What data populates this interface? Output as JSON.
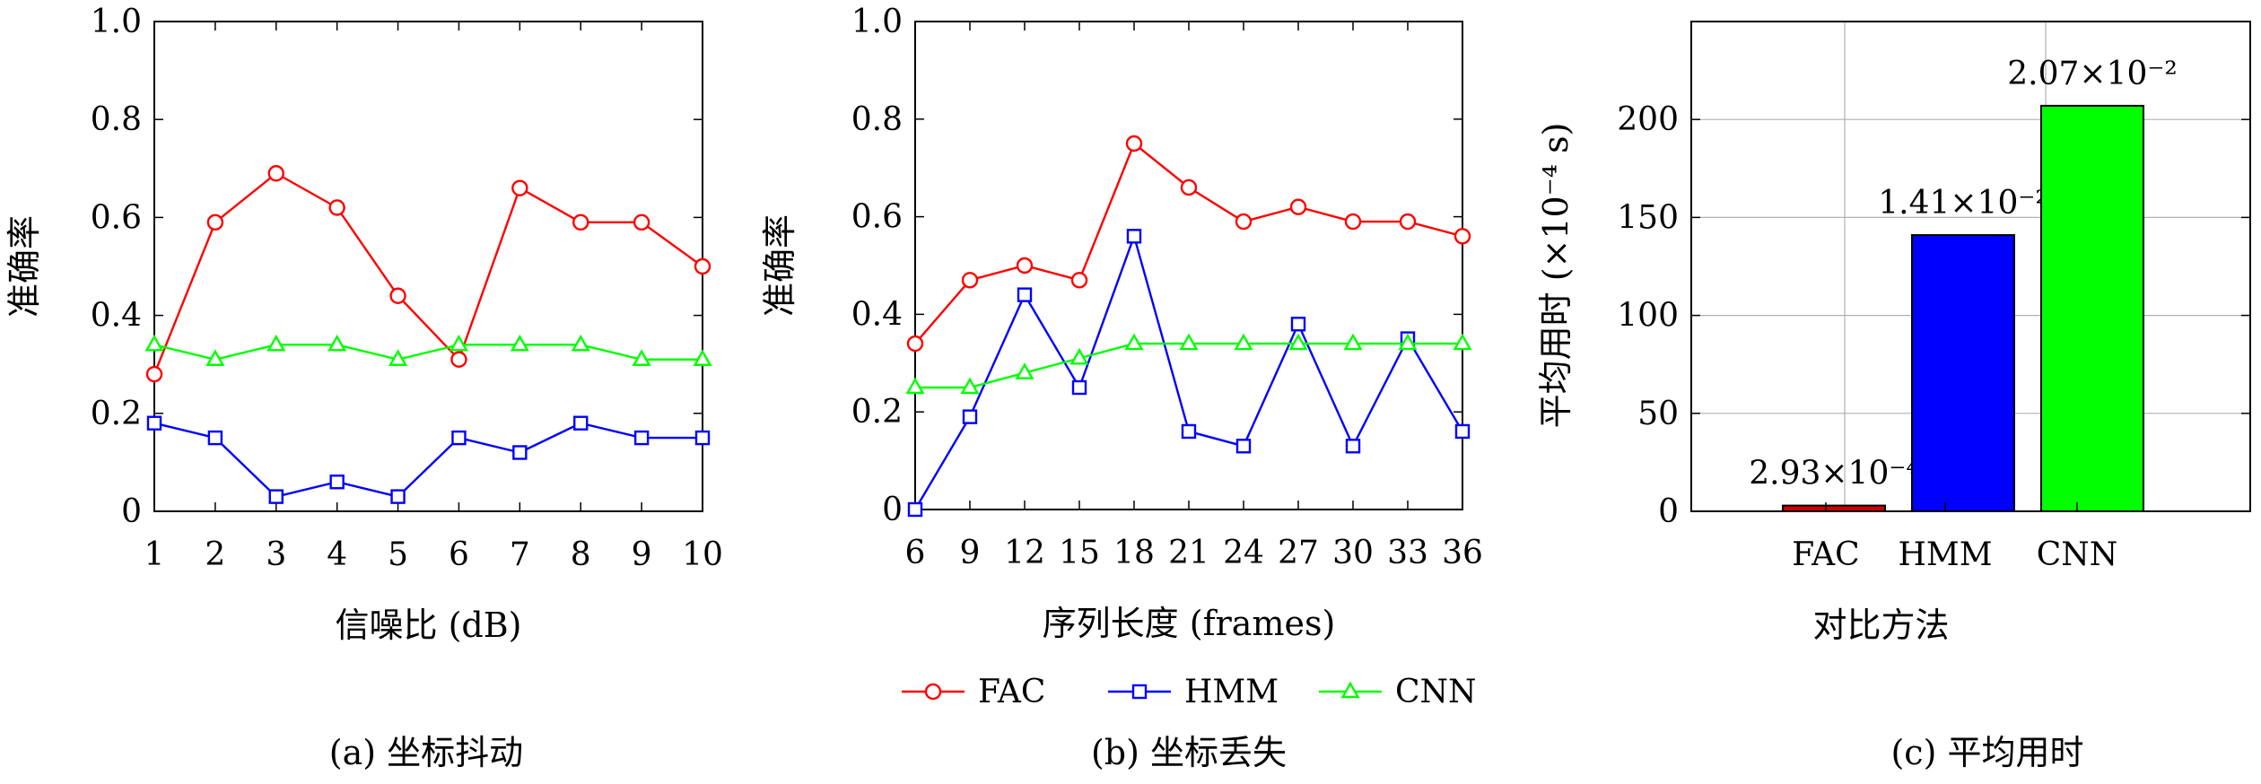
{
  "chart_data": [
    {
      "type": "line",
      "caption": "(a) 坐标抖动",
      "xlabel": "信噪比 (dB)",
      "ylabel": "准确率",
      "x": [
        1,
        2,
        3,
        4,
        5,
        6,
        7,
        8,
        9,
        10
      ],
      "xticks": [
        "1",
        "2",
        "3",
        "4",
        "5",
        "6",
        "7",
        "8",
        "9",
        "10"
      ],
      "xlim": [
        1,
        10
      ],
      "ylim": [
        0,
        1.0
      ],
      "yticks": [
        "0",
        "0.2",
        "0.4",
        "0.6",
        "0.8",
        "1.0"
      ],
      "grid": false,
      "series": [
        {
          "name": "FAC",
          "color": "#ff0000",
          "marker": "circle",
          "values": [
            0.28,
            0.59,
            0.69,
            0.62,
            0.44,
            0.31,
            0.66,
            0.59,
            0.59,
            0.5
          ]
        },
        {
          "name": "HMM",
          "color": "#0000ff",
          "marker": "square",
          "values": [
            0.18,
            0.15,
            0.03,
            0.06,
            0.03,
            0.15,
            0.12,
            0.18,
            0.15,
            0.15
          ]
        },
        {
          "name": "CNN",
          "color": "#00ff00",
          "marker": "triangle",
          "values": [
            0.34,
            0.31,
            0.34,
            0.34,
            0.31,
            0.34,
            0.34,
            0.34,
            0.31,
            0.31
          ]
        }
      ]
    },
    {
      "type": "line",
      "caption": "(b) 坐标丢失",
      "xlabel": "序列长度 (frames)",
      "ylabel": "准确率",
      "x": [
        6,
        9,
        12,
        15,
        18,
        21,
        24,
        27,
        30,
        33,
        36
      ],
      "xticks": [
        "6",
        "9",
        "12",
        "15",
        "18",
        "21",
        "24",
        "27",
        "30",
        "33",
        "36"
      ],
      "xlim": [
        6,
        36
      ],
      "ylim": [
        0,
        1.0
      ],
      "yticks": [
        "0",
        "0.2",
        "0.4",
        "0.6",
        "0.8",
        "1.0"
      ],
      "grid": false,
      "legend": "bottom",
      "series": [
        {
          "name": "FAC",
          "color": "#ff0000",
          "marker": "circle",
          "values": [
            0.34,
            0.47,
            0.5,
            0.47,
            0.75,
            0.66,
            0.59,
            0.62,
            0.59,
            0.59,
            0.56
          ]
        },
        {
          "name": "HMM",
          "color": "#0000ff",
          "marker": "square",
          "values": [
            0.0,
            0.19,
            0.44,
            0.25,
            0.56,
            0.16,
            0.13,
            0.38,
            0.13,
            0.35,
            0.16
          ]
        },
        {
          "name": "CNN",
          "color": "#00ff00",
          "marker": "triangle",
          "values": [
            0.25,
            0.25,
            0.28,
            0.31,
            0.34,
            0.34,
            0.34,
            0.34,
            0.34,
            0.34,
            0.34
          ]
        }
      ]
    },
    {
      "type": "bar",
      "caption": "(c) 平均用时",
      "xlabel": "对比方法",
      "ylabel": "平均用时 (×10⁻⁴ s)",
      "categories": [
        "FAC",
        "HMM",
        "CNN"
      ],
      "values": [
        2.93,
        141,
        207
      ],
      "colors": [
        "#cc0000",
        "#0000ff",
        "#00ff00"
      ],
      "data_labels": [
        "2.93×10⁻⁴",
        "1.41×10⁻²",
        "2.07×10⁻²"
      ],
      "ylim": [
        0,
        250
      ],
      "yticks": [
        "0",
        "50",
        "100",
        "150",
        "200"
      ],
      "grid": true
    }
  ]
}
